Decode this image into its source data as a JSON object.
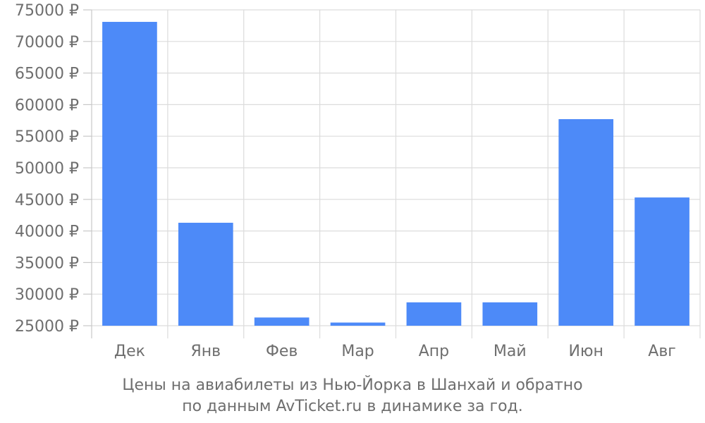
{
  "chart_data": {
    "type": "bar",
    "categories": [
      "Дек",
      "Янв",
      "Фев",
      "Мар",
      "Апр",
      "Май",
      "Июн",
      "Авг"
    ],
    "values": [
      73100,
      41300,
      26300,
      25500,
      28700,
      28700,
      57700,
      45300
    ],
    "ylim": [
      25000,
      75000
    ],
    "yticks": [
      25000,
      30000,
      35000,
      40000,
      45000,
      50000,
      55000,
      60000,
      65000,
      70000,
      75000
    ],
    "ytick_labels": [
      "25000 ₽",
      "30000 ₽",
      "35000 ₽",
      "40000 ₽",
      "45000 ₽",
      "50000 ₽",
      "55000 ₽",
      "60000 ₽",
      "65000 ₽",
      "70000 ₽",
      "75000 ₽"
    ],
    "bar_color": "#4d8af8",
    "grid": true
  },
  "caption": {
    "line1": "Цены на авиабилеты из Нью-Йорка в Шанхай и обратно",
    "line2": "по данным AvTicket.ru в динамике за год."
  }
}
